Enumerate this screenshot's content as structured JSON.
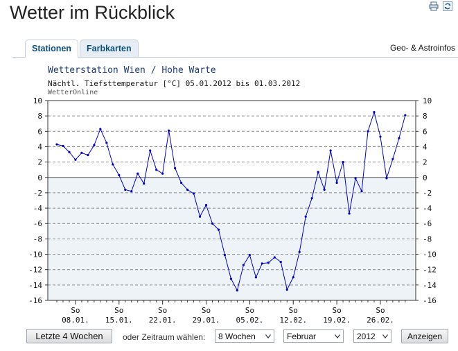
{
  "page": {
    "title": "Wetter im Rückblick",
    "icons": [
      "print-icon",
      "refresh-icon"
    ]
  },
  "tabs": [
    {
      "label": "Stationen",
      "active": true
    },
    {
      "label": "Farbkarten",
      "active": false
    }
  ],
  "geo_link": "Geo- & Astroinfos",
  "chart": {
    "title": "Wetterstation Wien / Hohe Warte",
    "subtitle": "Nächtl. Tiefsttemperatur [°C] 05.01.2012 bis 01.03.2012",
    "source": "WetterOnline"
  },
  "chart_data": {
    "type": "line",
    "title": "Wetterstation Wien / Hohe Warte",
    "subtitle": "Nächtl. Tiefsttemperatur [°C] 05.01.2012 bis 01.03.2012",
    "ylim": [
      -16,
      10
    ],
    "yticks": [
      10,
      8,
      6,
      4,
      2,
      0,
      -2,
      -4,
      -6,
      -8,
      -10,
      -12,
      -14,
      -16
    ],
    "x_start": "2012-01-05",
    "x_end": "2012-03-01",
    "xtick_dates": [
      "2012-01-08",
      "2012-01-15",
      "2012-01-22",
      "2012-01-29",
      "2012-02-05",
      "2012-02-12",
      "2012-02-19",
      "2012-02-26"
    ],
    "xtick_day_labels": [
      "So",
      "So",
      "So",
      "So",
      "So",
      "So",
      "So",
      "So"
    ],
    "xtick_labels": [
      "08.01.",
      "15.01.",
      "22.01.",
      "29.01.",
      "05.02.",
      "12.02.",
      "19.02.",
      "26.02."
    ],
    "grid": true,
    "colors": {
      "line": "#0000c8",
      "negative_fill": "#eef3f8",
      "grid": "#888888"
    },
    "series": [
      {
        "values": [
          4.3,
          4.1,
          3.3,
          2.3,
          3.2,
          2.9,
          4.2,
          6.3,
          4.5,
          1.7,
          0.3,
          -1.6,
          -1.8,
          0.5,
          -0.8,
          3.5,
          1.0,
          0.5,
          6.1,
          1.2,
          -0.7,
          -1.6,
          -2.1,
          -5.1,
          -3.6,
          -6.0,
          -6.8,
          -10.1,
          -13.2,
          -14.7,
          -11.4,
          -10.1,
          -13.0,
          -11.2,
          -11.1,
          -10.4,
          -11.0,
          -14.6,
          -13.0,
          -9.7,
          -5.1,
          -2.7,
          0.7,
          -1.6,
          3.5,
          -0.7,
          2.0,
          -4.7,
          -0.1,
          -1.8,
          6.0,
          8.5,
          5.3,
          -0.1,
          2.4,
          5.1,
          8.1
        ]
      }
    ]
  },
  "controls": {
    "last4_label": "Letzte 4 Wochen",
    "range_label": "oder Zeitraum wählen:",
    "weeks_value": "8 Wochen",
    "month_value": "Februar",
    "year_value": "2012",
    "show_label": "Anzeigen"
  }
}
